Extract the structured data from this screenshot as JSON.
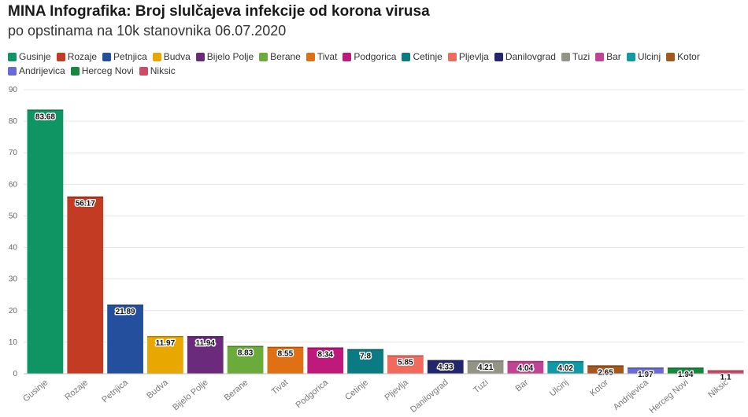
{
  "header": {
    "title": "MINA Infografika: Broj slulčajeva infekcije od korona virusa",
    "subtitle": "po opstinama na 10k stanovnika 06.07.2020"
  },
  "chart_data": {
    "type": "bar",
    "title": "MINA Infografika: Broj slulčajeva infekcije od korona virusa",
    "subtitle": "po opstinama na 10k stanovnika 06.07.2020",
    "xlabel": "",
    "ylabel": "",
    "ylim": [
      0,
      90
    ],
    "yticks": [
      0,
      10,
      20,
      30,
      40,
      50,
      60,
      70,
      80,
      90
    ],
    "grid": true,
    "legend_position": "top",
    "categories": [
      "Gusinje",
      "Rozaje",
      "Petnjica",
      "Budva",
      "Bijelo Polje",
      "Berane",
      "Tivat",
      "Podgorica",
      "Cetinje",
      "Pljevlja",
      "Danilovgrad",
      "Tuzi",
      "Bar",
      "Ulcinj",
      "Kotor",
      "Andrijevica",
      "Herceg Novi",
      "Niksic"
    ],
    "values": [
      83.68,
      56.17,
      21.89,
      11.97,
      11.94,
      8.83,
      8.55,
      8.34,
      7.8,
      5.85,
      4.33,
      4.21,
      4.04,
      4.02,
      2.65,
      1.97,
      1.94,
      1.1
    ],
    "value_labels": [
      "83.68",
      "56.17",
      "21.89",
      "11.97",
      "11.94",
      "8.83",
      "8.55",
      "8.34",
      "7.8",
      "5.85",
      "4.33",
      "4.21",
      "4.04",
      "4.02",
      "2.65",
      "1.97",
      "1.94",
      "1.1"
    ],
    "colors": [
      "#0e9563",
      "#c23b22",
      "#234f9c",
      "#e9a800",
      "#6b2a7c",
      "#6aab3c",
      "#e07014",
      "#c0197c",
      "#0b7b83",
      "#f06b5d",
      "#23266b",
      "#949484",
      "#bf4593",
      "#109ba4",
      "#a3581e",
      "#6a6bd6",
      "#15893e",
      "#d04a67"
    ]
  }
}
